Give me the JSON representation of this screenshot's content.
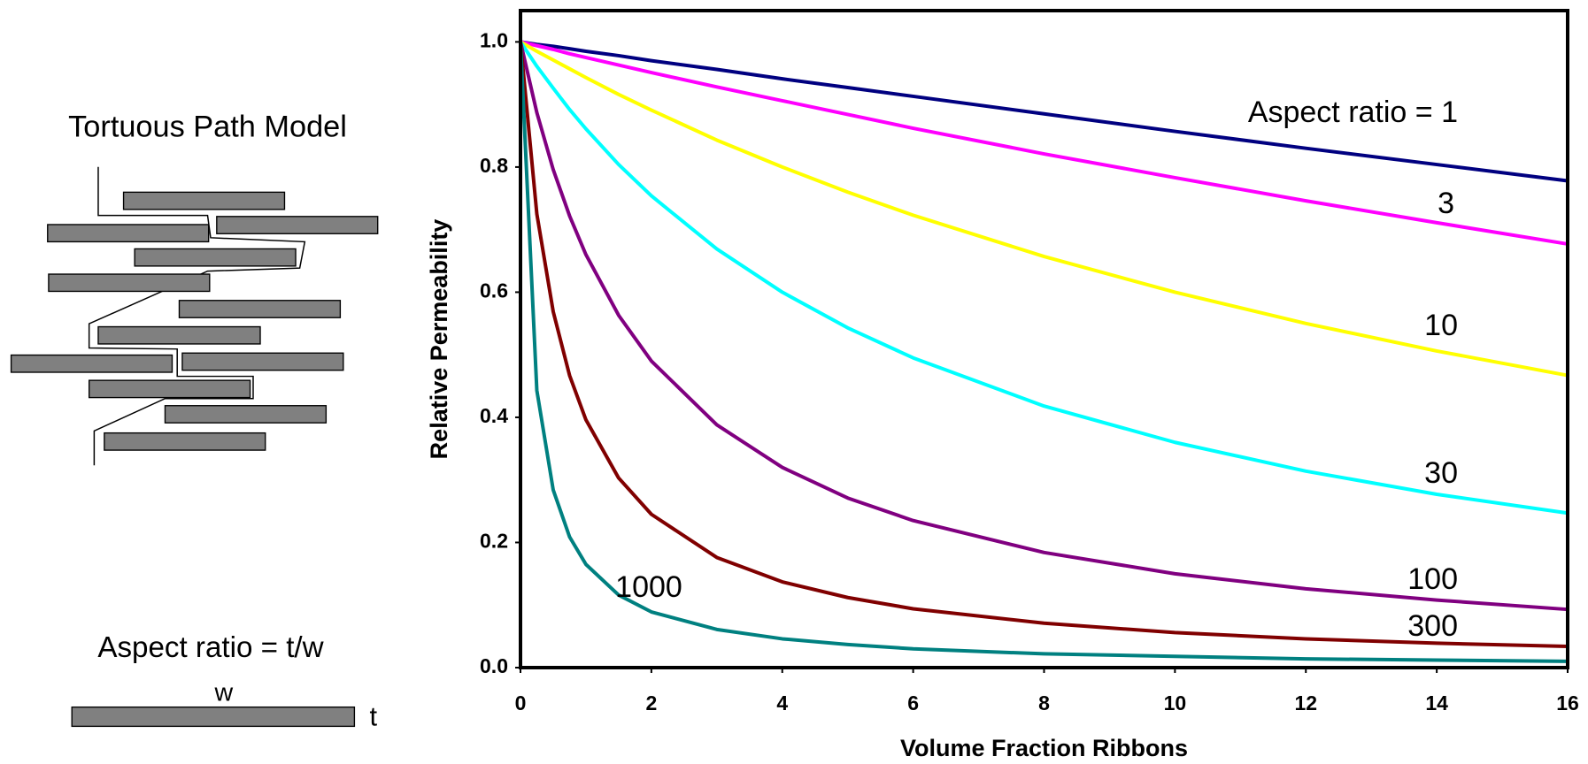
{
  "diagram": {
    "title": "Tortuous Path Model",
    "aspect_label": "Aspect ratio = t/w",
    "w": "w",
    "t": "t"
  },
  "chart_data": {
    "type": "line",
    "x_label": "Volume Fraction Ribbons",
    "y_label": "Relative Permeability",
    "xlim": [
      0,
      16
    ],
    "ylim": [
      0,
      1.05
    ],
    "xticks": [
      0,
      2,
      4,
      6,
      8,
      10,
      12,
      14,
      16
    ],
    "yticks": [
      {
        "value": 0,
        "label": "0.0"
      },
      0.2,
      0.4,
      0.6,
      0.8,
      {
        "value": 1,
        "label": "1.0"
      }
    ],
    "grid": false,
    "x": [
      0,
      0.25,
      0.5,
      0.75,
      1,
      1.5,
      2,
      3,
      4,
      5,
      6,
      8,
      10,
      12,
      14,
      16
    ],
    "series": [
      {
        "name": "Aspect ratio = 1",
        "color": "#000080",
        "values": [
          1,
          0.996,
          0.993,
          0.989,
          0.985,
          0.978,
          0.97,
          0.956,
          0.941,
          0.927,
          0.913,
          0.885,
          0.857,
          0.83,
          0.804,
          0.778
        ]
      },
      {
        "name": "3",
        "color": "#ff00ff",
        "values": [
          1,
          0.994,
          0.988,
          0.981,
          0.975,
          0.963,
          0.951,
          0.928,
          0.906,
          0.884,
          0.862,
          0.821,
          0.783,
          0.746,
          0.711,
          0.677
        ]
      },
      {
        "name": "10",
        "color": "#ffff00",
        "values": [
          1,
          0.985,
          0.971,
          0.957,
          0.943,
          0.916,
          0.891,
          0.843,
          0.8,
          0.76,
          0.723,
          0.657,
          0.6,
          0.55,
          0.506,
          0.467
        ]
      },
      {
        "name": "30",
        "color": "#00ffff",
        "values": [
          1,
          0.961,
          0.926,
          0.892,
          0.861,
          0.804,
          0.754,
          0.669,
          0.6,
          0.543,
          0.495,
          0.418,
          0.36,
          0.314,
          0.277,
          0.247
        ]
      },
      {
        "name": "100",
        "color": "#800080",
        "values": [
          1,
          0.887,
          0.796,
          0.722,
          0.66,
          0.563,
          0.49,
          0.388,
          0.32,
          0.271,
          0.235,
          0.184,
          0.15,
          0.126,
          0.108,
          0.093
        ]
      },
      {
        "name": "300",
        "color": "#800000",
        "values": [
          1,
          0.725,
          0.569,
          0.467,
          0.396,
          0.303,
          0.245,
          0.176,
          0.137,
          0.112,
          0.094,
          0.071,
          0.056,
          0.046,
          0.039,
          0.034
        ]
      },
      {
        "name": "1000",
        "color": "#008080",
        "values": [
          1,
          0.443,
          0.284,
          0.209,
          0.165,
          0.116,
          0.089,
          0.061,
          0.046,
          0.037,
          0.03,
          0.022,
          0.018,
          0.014,
          0.012,
          0.01
        ]
      }
    ]
  }
}
